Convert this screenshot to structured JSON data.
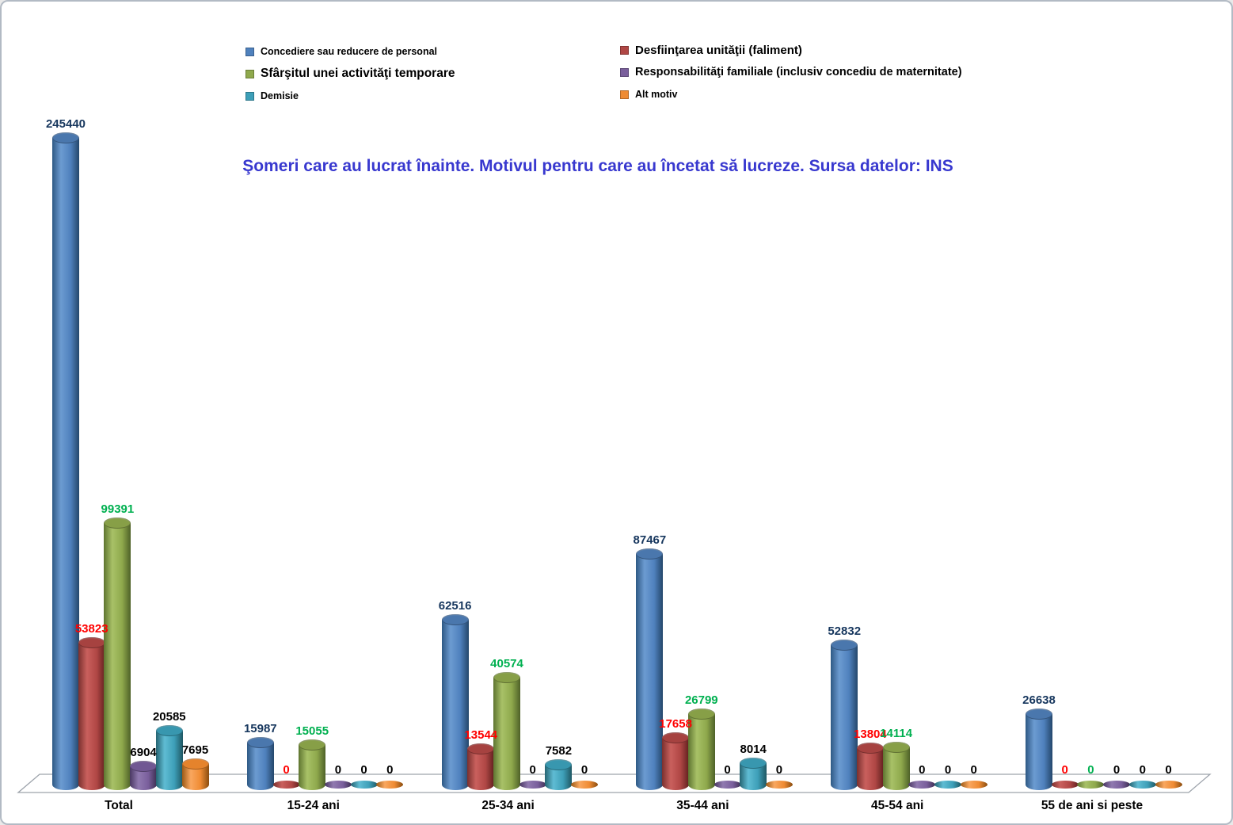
{
  "frame": {
    "background": "#ffffff",
    "border_color": "#b2bac4"
  },
  "title": {
    "text": "Şomeri care au lucrat înainte. Motivul pentru care au încetat să lucreze. Sursa datelor: INS",
    "color": "#3838cf"
  },
  "legend": {
    "position": "top",
    "left_indices": [
      0,
      2,
      4
    ],
    "right_indices": [
      1,
      3,
      5
    ]
  },
  "chart_data": {
    "type": "bar",
    "subtype": "3d-cylinder",
    "title": "Şomeri care au lucrat înainte. Motivul pentru care au încetat să lucreze. Sursa datelor: INS",
    "xlabel": "",
    "ylabel": "",
    "ylim": [
      0,
      245440
    ],
    "grid": false,
    "legend_position": "top",
    "categories": [
      "Total",
      "15-24 ani",
      "25-34 ani",
      "35-44 ani",
      "45-54 ani",
      "55 de ani si peste"
    ],
    "series": [
      {
        "name": "Concediere sau reducere de personal",
        "color": "#4f81bd",
        "shade_light": "#6c9bd1",
        "shade_dark": "#2e5984",
        "shade_edge": "#24476b",
        "cap": "#4a77ad",
        "label_color": "#17375e",
        "values": [
          245440,
          15987,
          62516,
          87467,
          52832,
          26638
        ]
      },
      {
        "name": "Desfiinţarea unităţii (faliment)",
        "color": "#b04745",
        "shade_light": "#c9605d",
        "shade_dark": "#7a302e",
        "shade_edge": "#61201f",
        "cap": "#a64240",
        "label_color": "#ff0000",
        "values": [
          53823,
          0,
          13544,
          17658,
          13804,
          0
        ]
      },
      {
        "name": "Sfârşitul unei activităţi temporare",
        "color": "#8fa94c",
        "shade_light": "#a8c167",
        "shade_dark": "#5e7430",
        "shade_edge": "#4e6128",
        "cap": "#879f47",
        "label_color": "#00b050",
        "values": [
          99391,
          15055,
          40574,
          26799,
          14114,
          0
        ]
      },
      {
        "name": "Responsabilităţi familiale (inclusiv concediu de maternitate)",
        "color": "#7a5f9c",
        "shade_light": "#9079b0",
        "shade_dark": "#4a3862",
        "shade_edge": "#3e2f53",
        "cap": "#715893",
        "label_color": "#000000",
        "values": [
          6904,
          0,
          0,
          0,
          0,
          0
        ]
      },
      {
        "name": "Demisie",
        "color": "#3d9fb8",
        "shade_light": "#5fbcd3",
        "shade_dark": "#256472",
        "shade_edge": "#1f5763",
        "cap": "#3897af",
        "label_color": "#000000",
        "values": [
          20585,
          0,
          7582,
          8014,
          0,
          0
        ]
      },
      {
        "name": "Alt motiv",
        "color": "#ef8b33",
        "shade_light": "#f9a75f",
        "shade_dark": "#9c5a16",
        "shade_edge": "#8a4d10",
        "cap": "#e5832c",
        "label_color": "#000000",
        "values": [
          7695,
          0,
          0,
          0,
          0,
          0
        ]
      }
    ]
  }
}
